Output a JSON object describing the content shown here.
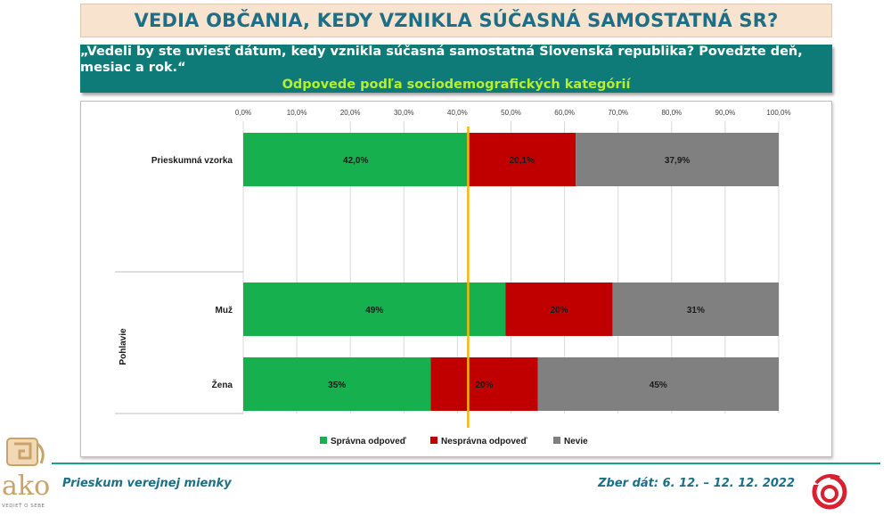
{
  "header": {
    "title": "VEDIA OBČANIA, KEDY VZNIKLA SÚČASNÁ SAMOSTATNÁ SR?",
    "question": "„Vedeli by ste uviesť dátum, kedy vznikla súčasná samostatná Slovenská republika? Povedzte deň, mesiac a rok.“",
    "subtitle": "Odpovede podľa sociodemografických kategórií"
  },
  "footer": {
    "left": "Prieskum verejnej mienky",
    "right": "Zber dát: 6. 12. – 12. 12. 2022",
    "logo_text": "ako",
    "logo_tagline": "VEDIEŤ O SEBE"
  },
  "colors": {
    "correct": "#16b04f",
    "incorrect": "#c00000",
    "unknown": "#808080",
    "reference_line": "#f5b800",
    "title": "#1e6f86",
    "question_bg": "#0f7b79",
    "subtitle": "#b7ee2d"
  },
  "chart_data": {
    "type": "bar",
    "orientation": "horizontal",
    "stacked": true,
    "xlim": [
      0,
      100
    ],
    "x_ticks": [
      "0,0%",
      "10,0%",
      "20,0%",
      "30,0%",
      "40,0%",
      "50,0%",
      "60,0%",
      "70,0%",
      "80,0%",
      "90,0%",
      "100,0%"
    ],
    "x_axis_position": "top",
    "grid": true,
    "reference_line_x": 42.0,
    "group_label": "Pohlavie",
    "categories": [
      "Prieskumná vzorka",
      "Muž",
      "Žena"
    ],
    "series": [
      {
        "name": "Správna odpoveď",
        "values": [
          42.0,
          49,
          35
        ],
        "labels": [
          "42,0%",
          "49%",
          "35%"
        ]
      },
      {
        "name": "Nesprávna odpoveď",
        "values": [
          20.1,
          20,
          20
        ],
        "labels": [
          "20,1%",
          "20%",
          "20%"
        ]
      },
      {
        "name": "Nevie",
        "values": [
          37.9,
          31,
          45
        ],
        "labels": [
          "37,9%",
          "31%",
          "45%"
        ]
      }
    ],
    "legend_position": "bottom"
  }
}
